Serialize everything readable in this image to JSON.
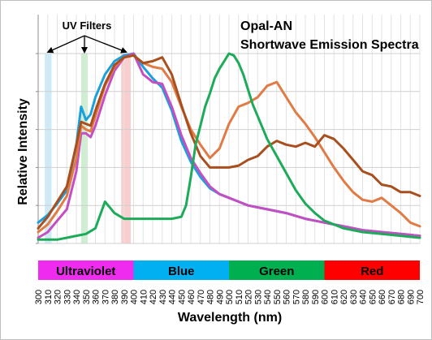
{
  "chart_data": {
    "type": "line",
    "title_line1": "Opal-AN",
    "title_line2": "Shortwave Emission Spectra",
    "xlabel": "Wavelength (nm)",
    "ylabel": "Relative Intensity",
    "xlim": [
      300,
      700
    ],
    "ylim": [
      0,
      1
    ],
    "x_ticks": [
      300,
      310,
      320,
      330,
      340,
      350,
      360,
      370,
      380,
      390,
      400,
      410,
      420,
      430,
      440,
      450,
      460,
      470,
      480,
      490,
      500,
      510,
      520,
      530,
      540,
      550,
      560,
      570,
      580,
      590,
      600,
      610,
      620,
      630,
      640,
      650,
      660,
      670,
      680,
      690,
      700
    ],
    "grid": true,
    "uv_filters": {
      "label": "UV Filters",
      "bands": [
        {
          "from": 307,
          "to": 314,
          "color": "#bfe9f7"
        },
        {
          "from": 345,
          "to": 352,
          "color": "#c6ebc9"
        },
        {
          "from": 387,
          "to": 397,
          "color": "#f7c6c6"
        }
      ]
    },
    "color_bands": [
      {
        "label": "Ultraviolet",
        "from": 300,
        "to": 400,
        "color": "#ee2bee"
      },
      {
        "label": "Blue",
        "from": 400,
        "to": 500,
        "color": "#00b0f0"
      },
      {
        "label": "Green",
        "from": 500,
        "to": 600,
        "color": "#00b050"
      },
      {
        "label": "Red",
        "from": 600,
        "to": 700,
        "color": "#ff0000"
      }
    ],
    "series": [
      {
        "color": "#1aa0dc",
        "x": [
          300,
          310,
          320,
          330,
          340,
          345,
          350,
          355,
          360,
          370,
          380,
          390,
          400,
          410,
          420,
          430,
          440,
          450,
          460,
          470,
          480,
          490,
          500,
          510,
          520,
          540,
          560,
          580,
          600,
          620,
          640,
          660,
          680,
          700
        ],
        "y": [
          0.11,
          0.15,
          0.21,
          0.28,
          0.52,
          0.72,
          0.65,
          0.68,
          0.77,
          0.89,
          0.96,
          0.99,
          1.0,
          0.93,
          0.87,
          0.82,
          0.7,
          0.54,
          0.43,
          0.35,
          0.29,
          0.26,
          0.24,
          0.22,
          0.2,
          0.18,
          0.16,
          0.13,
          0.11,
          0.09,
          0.07,
          0.06,
          0.05,
          0.04
        ]
      },
      {
        "color": "#c44ec2",
        "x": [
          300,
          310,
          320,
          330,
          340,
          345,
          350,
          355,
          360,
          370,
          380,
          390,
          400,
          410,
          420,
          430,
          440,
          450,
          460,
          470,
          480,
          490,
          500,
          510,
          520,
          540,
          560,
          580,
          600,
          620,
          640,
          660,
          680,
          700
        ],
        "y": [
          0.03,
          0.06,
          0.12,
          0.18,
          0.38,
          0.58,
          0.58,
          0.56,
          0.62,
          0.78,
          0.91,
          0.98,
          1.0,
          0.89,
          0.85,
          0.84,
          0.72,
          0.57,
          0.45,
          0.37,
          0.3,
          0.26,
          0.24,
          0.22,
          0.2,
          0.18,
          0.16,
          0.13,
          0.11,
          0.09,
          0.07,
          0.06,
          0.05,
          0.04
        ]
      },
      {
        "color": "#e07b46",
        "x": [
          300,
          310,
          320,
          330,
          340,
          345,
          350,
          355,
          360,
          370,
          380,
          390,
          400,
          410,
          420,
          430,
          440,
          450,
          460,
          470,
          480,
          490,
          500,
          510,
          520,
          530,
          540,
          550,
          560,
          570,
          580,
          590,
          600,
          610,
          620,
          630,
          640,
          650,
          660,
          670,
          680,
          690,
          700
        ],
        "y": [
          0.06,
          0.1,
          0.17,
          0.25,
          0.45,
          0.62,
          0.6,
          0.59,
          0.67,
          0.83,
          0.93,
          0.98,
          0.99,
          0.95,
          0.93,
          0.92,
          0.85,
          0.72,
          0.6,
          0.52,
          0.45,
          0.5,
          0.63,
          0.72,
          0.74,
          0.77,
          0.83,
          0.85,
          0.77,
          0.69,
          0.63,
          0.56,
          0.48,
          0.4,
          0.33,
          0.27,
          0.23,
          0.22,
          0.24,
          0.2,
          0.16,
          0.11,
          0.09
        ]
      },
      {
        "color": "#a84f1f",
        "x": [
          300,
          310,
          320,
          330,
          340,
          345,
          350,
          355,
          360,
          370,
          380,
          390,
          400,
          410,
          420,
          430,
          440,
          450,
          460,
          470,
          480,
          490,
          500,
          510,
          520,
          530,
          540,
          550,
          560,
          570,
          580,
          590,
          600,
          610,
          620,
          630,
          640,
          650,
          660,
          670,
          680,
          690,
          700
        ],
        "y": [
          0.08,
          0.14,
          0.22,
          0.3,
          0.52,
          0.64,
          0.63,
          0.62,
          0.7,
          0.84,
          0.94,
          0.98,
          0.99,
          0.95,
          0.96,
          0.98,
          0.89,
          0.73,
          0.58,
          0.46,
          0.4,
          0.4,
          0.4,
          0.41,
          0.44,
          0.46,
          0.51,
          0.54,
          0.52,
          0.51,
          0.53,
          0.51,
          0.57,
          0.55,
          0.5,
          0.44,
          0.38,
          0.36,
          0.31,
          0.3,
          0.27,
          0.27,
          0.25
        ]
      },
      {
        "color": "#1dab5a",
        "x": [
          300,
          310,
          320,
          330,
          340,
          350,
          360,
          370,
          380,
          390,
          400,
          420,
          440,
          450,
          455,
          460,
          465,
          470,
          475,
          480,
          485,
          490,
          495,
          500,
          505,
          510,
          515,
          520,
          525,
          530,
          540,
          550,
          560,
          570,
          580,
          590,
          600,
          620,
          640,
          660,
          680,
          700
        ],
        "y": [
          0.02,
          0.02,
          0.02,
          0.03,
          0.04,
          0.05,
          0.08,
          0.22,
          0.16,
          0.13,
          0.13,
          0.13,
          0.13,
          0.14,
          0.2,
          0.35,
          0.52,
          0.62,
          0.72,
          0.79,
          0.87,
          0.92,
          0.96,
          1.0,
          0.99,
          0.95,
          0.89,
          0.81,
          0.73,
          0.67,
          0.55,
          0.46,
          0.37,
          0.28,
          0.21,
          0.16,
          0.12,
          0.08,
          0.06,
          0.05,
          0.04,
          0.03
        ]
      }
    ]
  }
}
